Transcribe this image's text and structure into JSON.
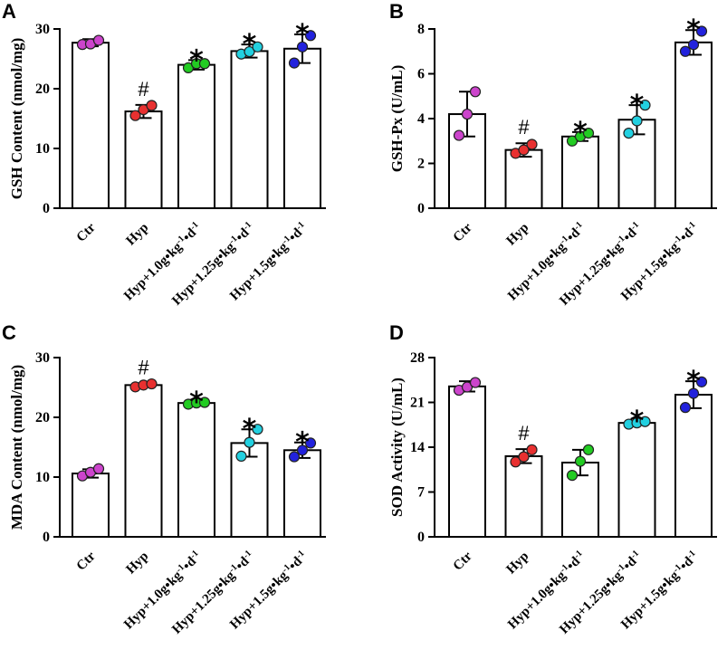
{
  "figure": {
    "categories": [
      "Ctr",
      "Hyp",
      "Hyp+1.0g•kg-1•d-1",
      "Hyp+1.25g•kg-1•d-1",
      "Hyp+1.5g•kg-1•d-1"
    ],
    "category_label_parts": [
      [
        {
          "t": "Ctr"
        }
      ],
      [
        {
          "t": "Hyp"
        }
      ],
      [
        {
          "t": "Hyp+1.0g•kg"
        },
        {
          "t": "-1",
          "sup": true
        },
        {
          "t": "•d"
        },
        {
          "t": "-1",
          "sup": true
        }
      ],
      [
        {
          "t": "Hyp+1.25g•kg"
        },
        {
          "t": "-1",
          "sup": true
        },
        {
          "t": "•d"
        },
        {
          "t": "-1",
          "sup": true
        }
      ],
      [
        {
          "t": "Hyp+1.5g•kg"
        },
        {
          "t": "-1",
          "sup": true
        },
        {
          "t": "•d"
        },
        {
          "t": "-1",
          "sup": true
        }
      ]
    ],
    "dot_colors": [
      "#cc44cc",
      "#e83030",
      "#22cc22",
      "#22d0e0",
      "#2222dd"
    ],
    "bar_color": "#ffffff",
    "edge_color": "#000000"
  },
  "chart_data": [
    {
      "type": "bar",
      "panel": "A",
      "ylabel": "GSH Content (nmol/mg)",
      "ylim": [
        0,
        30
      ],
      "yticks": [
        0,
        10,
        20,
        30
      ],
      "categories": [
        "Ctr",
        "Hyp",
        "Hyp+1.0g•kg-1•d-1",
        "Hyp+1.25g•kg-1•d-1",
        "Hyp+1.5g•kg-1•d-1"
      ],
      "values": [
        27.7,
        16.2,
        24.0,
        26.3,
        26.7
      ],
      "sd": [
        0.6,
        1.1,
        0.8,
        1.1,
        2.4
      ],
      "points": [
        [
          27.4,
          27.5,
          28.1
        ],
        [
          15.5,
          16.5,
          17.2
        ],
        [
          23.5,
          24.2,
          24.2
        ],
        [
          25.8,
          26.2,
          27.0
        ],
        [
          24.3,
          27.0,
          28.9
        ]
      ],
      "markers": [
        "",
        "#",
        "*",
        "*",
        "*"
      ]
    },
    {
      "type": "bar",
      "panel": "B",
      "ylabel": "GSH-Px (U/mL)",
      "ylim": [
        0,
        8
      ],
      "yticks": [
        0,
        2,
        4,
        6,
        8
      ],
      "categories": [
        "Ctr",
        "Hyp",
        "Hyp+1.0g•kg-1•d-1",
        "Hyp+1.25g•kg-1•d-1",
        "Hyp+1.5g•kg-1•d-1"
      ],
      "values": [
        4.2,
        2.6,
        3.2,
        3.95,
        7.4
      ],
      "sd": [
        1.0,
        0.3,
        0.2,
        0.65,
        0.55
      ],
      "points": [
        [
          3.25,
          4.2,
          5.2
        ],
        [
          2.45,
          2.6,
          2.85
        ],
        [
          3.0,
          3.2,
          3.35
        ],
        [
          3.35,
          3.9,
          4.6
        ],
        [
          7.0,
          7.3,
          7.9
        ]
      ],
      "markers": [
        "",
        "#",
        "*",
        "*",
        "*"
      ]
    },
    {
      "type": "bar",
      "panel": "C",
      "ylabel": "MDA Content (nmol/mg)",
      "ylim": [
        0,
        30
      ],
      "yticks": [
        0,
        10,
        20,
        30
      ],
      "categories": [
        "Ctr",
        "Hyp",
        "Hyp+1.0g•kg-1•d-1",
        "Hyp+1.25g•kg-1•d-1",
        "Hyp+1.5g•kg-1•d-1"
      ],
      "values": [
        10.6,
        25.4,
        22.4,
        15.7,
        14.5
      ],
      "sd": [
        0.7,
        0.3,
        0.2,
        2.3,
        1.3
      ],
      "points": [
        [
          10.2,
          10.8,
          11.4
        ],
        [
          25.1,
          25.4,
          25.6
        ],
        [
          22.2,
          22.4,
          22.5
        ],
        [
          13.5,
          15.8,
          18.0
        ],
        [
          13.4,
          14.5,
          15.7
        ]
      ],
      "markers": [
        "",
        "#",
        "*",
        "*",
        "*"
      ]
    },
    {
      "type": "bar",
      "panel": "D",
      "ylabel": "SOD Activity (U/mL)",
      "ylim": [
        0,
        28
      ],
      "yticks": [
        0,
        7,
        14,
        21,
        28
      ],
      "categories": [
        "Ctr",
        "Hyp",
        "Hyp+1.0g•kg-1•d-1",
        "Hyp+1.25g•kg-1•d-1",
        "Hyp+1.5g•kg-1•d-1"
      ],
      "values": [
        23.5,
        12.6,
        11.6,
        17.8,
        22.2
      ],
      "sd": [
        0.8,
        1.1,
        2.0,
        0.3,
        2.1
      ],
      "points": [
        [
          22.9,
          23.4,
          24.1
        ],
        [
          11.7,
          12.5,
          13.6
        ],
        [
          9.6,
          11.8,
          13.6
        ],
        [
          17.6,
          17.8,
          18.0
        ],
        [
          20.2,
          22.4,
          24.2
        ]
      ],
      "markers": [
        "",
        "#",
        "",
        "*",
        "*"
      ]
    }
  ]
}
